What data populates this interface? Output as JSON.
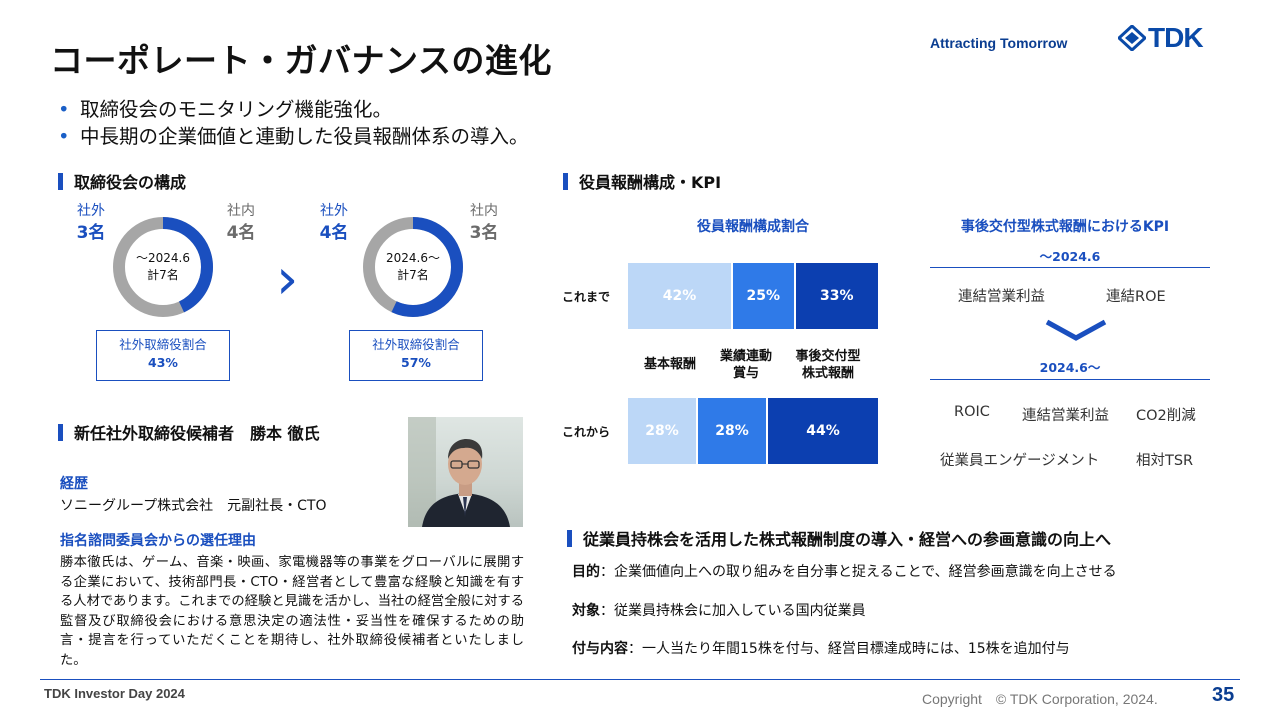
{
  "header": {
    "title": "コーポレート・ガバナンスの進化",
    "tagline": "Attracting Tomorrow",
    "logo_text": "TDK"
  },
  "bullets": [
    "取締役会のモニタリング機能強化。",
    "中長期の企業価値と連動した役員報酬体系の導入。"
  ],
  "board": {
    "heading": "取締役会の構成",
    "before": {
      "outside_label": "社外",
      "outside_count": "3名",
      "inside_label": "社内",
      "inside_count": "4名",
      "center_line1": "〜2024.6",
      "center_line2": "計7名",
      "outside_fraction": 0.43,
      "ratio_label": "社外取締役割合",
      "ratio_value": "43%"
    },
    "after": {
      "outside_label": "社外",
      "outside_count": "4名",
      "inside_label": "社内",
      "inside_count": "3名",
      "center_line1": "2024.6〜",
      "center_line2": "計7名",
      "outside_fraction": 0.57,
      "ratio_label": "社外取締役割合",
      "ratio_value": "57%"
    },
    "arrow": "›",
    "outside_color": "#1a4fbf",
    "inside_color": "#a6a6a6"
  },
  "candidate": {
    "heading": "新任社外取締役候補者　勝本 徹氏",
    "career_label": "経歴",
    "career_text": "ソニーグループ株式会社　元副社長・CTO",
    "reason_label": "指名諮問委員会からの選任理由",
    "reason_text": "勝本徹氏は、ゲーム、音楽・映画、家電機器等の事業をグローバルに展開する企業において、技術部門長・CTO・経営者として豊富な経験と知識を有する人材であります。これまでの経験と見識を活かし、当社の経営全般に対する監督及び取締役会における意思決定の適法性・妥当性を確保するための助言・提言を行っていただくことを期待し、社外取締役候補者といたしました。"
  },
  "compensation": {
    "heading": "役員報酬構成・KPI",
    "chart_title": "役員報酬構成割合",
    "categories": [
      "基本報酬",
      "業績連動賞与",
      "事後交付型株式報酬"
    ],
    "category_lines": [
      [
        "基本報酬"
      ],
      [
        "業績連動",
        "賞与"
      ],
      [
        "事後交付型",
        "株式報酬"
      ]
    ],
    "colors": [
      "#bcd7f7",
      "#2f7ae8",
      "#0c3fb0"
    ],
    "rows": [
      {
        "label": "これまで",
        "values": [
          42,
          25,
          33
        ],
        "texts": [
          "42%",
          "25%",
          "33%"
        ]
      },
      {
        "label": "これから",
        "values": [
          28,
          28,
          44
        ],
        "texts": [
          "28%",
          "28%",
          "44%"
        ]
      }
    ]
  },
  "chart_data": {
    "type": "bar",
    "orientation": "horizontal-stacked",
    "title": "役員報酬構成割合",
    "categories": [
      "これまで",
      "これから"
    ],
    "series": [
      {
        "name": "基本報酬",
        "values": [
          42,
          28
        ]
      },
      {
        "name": "業績連動賞与",
        "values": [
          25,
          28
        ]
      },
      {
        "name": "事後交付型株式報酬",
        "values": [
          33,
          44
        ]
      }
    ],
    "xlim": [
      0,
      100
    ],
    "grid": false
  },
  "kpi": {
    "title": "事後交付型株式報酬におけるKPI",
    "before_date": "〜2024.6",
    "before_items": [
      "連結営業利益",
      "連結ROE"
    ],
    "after_date": "2024.6〜",
    "after_items_row1": [
      "ROIC",
      "連結営業利益",
      "CO2削減"
    ],
    "after_items_row2": [
      "従業員エンゲージメント",
      "相対TSR"
    ]
  },
  "esop": {
    "heading": "従業員持株会を活用した株式報酬制度の導入・経営への参画意識の向上へ",
    "lines": [
      {
        "label": "目的",
        "text": "：企業価値向上への取り組みを自分事と捉えることで、経営参画意識を向上させる"
      },
      {
        "label": "対象",
        "text": "：従業員持株会に加入している国内従業員"
      },
      {
        "label": "付与内容",
        "text": "：一人当たり年間15株を付与、経営目標達成時には、15株を追加付与"
      }
    ]
  },
  "footer": {
    "left": "TDK Investor Day 2024",
    "copyright": "Copyright　© TDK Corporation, 2024.",
    "page": "35"
  }
}
